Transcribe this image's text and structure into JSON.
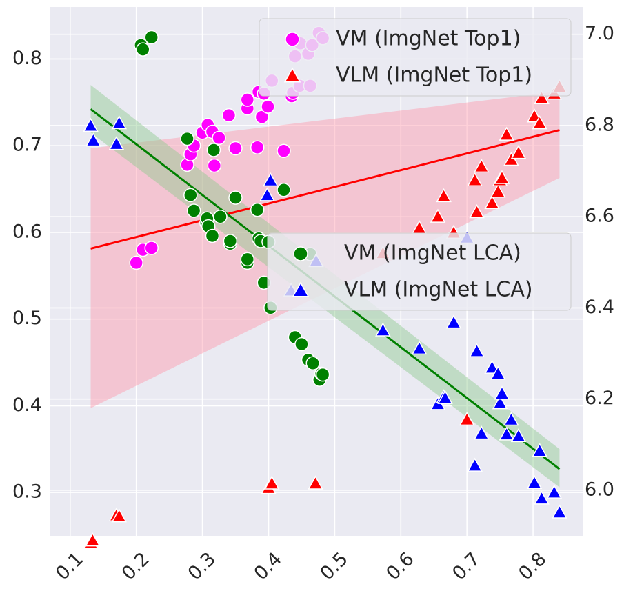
{
  "chart_data": {
    "type": "scatter",
    "title": "",
    "xlabel": "",
    "ylabel_left": "",
    "ylabel_right": "",
    "xlim": [
      0.07,
      0.875
    ],
    "ylim_left": [
      0.25,
      0.86
    ],
    "ylim_right": [
      5.9,
      7.06
    ],
    "x_ticks": [
      0.1,
      0.2,
      0.3,
      0.4,
      0.5,
      0.6,
      0.7,
      0.8
    ],
    "x_tick_labels": [
      "0.1",
      "0.2",
      "0.3",
      "0.4",
      "0.5",
      "0.6",
      "0.7",
      "0.8"
    ],
    "y_left_ticks": [
      0.3,
      0.4,
      0.5,
      0.6,
      0.7,
      0.8
    ],
    "y_left_tick_labels": [
      "0.3",
      "0.4",
      "0.5",
      "0.6",
      "0.7",
      "0.8"
    ],
    "y_right_ticks": [
      6.0,
      6.2,
      6.4,
      6.6,
      6.8,
      7.0
    ],
    "y_right_tick_labels": [
      "6.0",
      "6.2",
      "6.4",
      "6.6",
      "6.8",
      "7.0"
    ],
    "grid": true,
    "background_color": "#eaeaf2",
    "legends": [
      {
        "position": "top-right",
        "entries": [
          {
            "label": "VM (ImgNet Top1)",
            "marker": "circle",
            "color": "#ff00ff"
          },
          {
            "label": "VLM (ImgNet Top1)",
            "marker": "triangle",
            "color": "#ff0000"
          }
        ]
      },
      {
        "position": "center-right",
        "entries": [
          {
            "label": "VM (ImgNet LCA)",
            "marker": "circle",
            "color": "#008000"
          },
          {
            "label": "VLM (ImgNet LCA)",
            "marker": "triangle",
            "color": "#0000ff"
          }
        ]
      }
    ],
    "series": [
      {
        "name": "VM (ImgNet Top1)",
        "axis": "left",
        "marker": "circle",
        "color": "#ff00ff",
        "points": [
          [
            0.2,
            0.565
          ],
          [
            0.21,
            0.58
          ],
          [
            0.223,
            0.582
          ],
          [
            0.277,
            0.678
          ],
          [
            0.282,
            0.69
          ],
          [
            0.287,
            0.7
          ],
          [
            0.3,
            0.715
          ],
          [
            0.308,
            0.724
          ],
          [
            0.315,
            0.716
          ],
          [
            0.318,
            0.677
          ],
          [
            0.325,
            0.709
          ],
          [
            0.34,
            0.735
          ],
          [
            0.35,
            0.697
          ],
          [
            0.368,
            0.743
          ],
          [
            0.368,
            0.753
          ],
          [
            0.383,
            0.698
          ],
          [
            0.385,
            0.762
          ],
          [
            0.39,
            0.733
          ],
          [
            0.393,
            0.76
          ],
          [
            0.399,
            0.745
          ],
          [
            0.405,
            0.775
          ],
          [
            0.423,
            0.694
          ],
          [
            0.435,
            0.757
          ],
          [
            0.437,
            0.761
          ],
          [
            0.44,
            0.803
          ],
          [
            0.447,
            0.769
          ],
          [
            0.448,
            0.818
          ],
          [
            0.46,
            0.806
          ],
          [
            0.463,
            0.769
          ],
          [
            0.466,
            0.816
          ],
          [
            0.476,
            0.83
          ],
          [
            0.482,
            0.824
          ]
        ]
      },
      {
        "name": "VLM (ImgNet Top1)",
        "axis": "right",
        "marker": "triangle",
        "color": "#ff0000",
        "points": [
          [
            0.131,
            5.885
          ],
          [
            0.134,
            5.89
          ],
          [
            0.17,
            5.945
          ],
          [
            0.174,
            5.943
          ],
          [
            0.4,
            6.005
          ],
          [
            0.405,
            6.015
          ],
          [
            0.471,
            6.015
          ],
          [
            0.573,
            6.52
          ],
          [
            0.628,
            6.575
          ],
          [
            0.656,
            6.6
          ],
          [
            0.665,
            6.645
          ],
          [
            0.68,
            6.565
          ],
          [
            0.7,
            6.155
          ],
          [
            0.712,
            6.68
          ],
          [
            0.715,
            6.61
          ],
          [
            0.722,
            6.71
          ],
          [
            0.738,
            6.63
          ],
          [
            0.747,
            6.655
          ],
          [
            0.75,
            6.68
          ],
          [
            0.753,
            6.685
          ],
          [
            0.76,
            6.78
          ],
          [
            0.767,
            6.725
          ],
          [
            0.778,
            6.74
          ],
          [
            0.802,
            6.82
          ],
          [
            0.81,
            6.805
          ],
          [
            0.813,
            6.86
          ],
          [
            0.832,
            6.87
          ],
          [
            0.84,
            6.885
          ]
        ]
      },
      {
        "name": "VM (ImgNet LCA)",
        "axis": "left",
        "marker": "circle",
        "color": "#008000",
        "points": [
          [
            0.207,
            0.816
          ],
          [
            0.21,
            0.811
          ],
          [
            0.223,
            0.825
          ],
          [
            0.277,
            0.708
          ],
          [
            0.282,
            0.643
          ],
          [
            0.287,
            0.625
          ],
          [
            0.306,
            0.611
          ],
          [
            0.307,
            0.616
          ],
          [
            0.309,
            0.607
          ],
          [
            0.315,
            0.596
          ],
          [
            0.317,
            0.695
          ],
          [
            0.327,
            0.618
          ],
          [
            0.342,
            0.587
          ],
          [
            0.342,
            0.59
          ],
          [
            0.35,
            0.64
          ],
          [
            0.368,
            0.565
          ],
          [
            0.368,
            0.569
          ],
          [
            0.383,
            0.626
          ],
          [
            0.385,
            0.593
          ],
          [
            0.388,
            0.59
          ],
          [
            0.393,
            0.542
          ],
          [
            0.4,
            0.589
          ],
          [
            0.403,
            0.513
          ],
          [
            0.423,
            0.649
          ],
          [
            0.44,
            0.479
          ],
          [
            0.45,
            0.471
          ],
          [
            0.46,
            0.453
          ],
          [
            0.463,
            0.575
          ],
          [
            0.467,
            0.449
          ],
          [
            0.477,
            0.43
          ],
          [
            0.48,
            0.437
          ],
          [
            0.482,
            0.436
          ]
        ]
      },
      {
        "name": "VLM (ImgNet LCA)",
        "axis": "left",
        "marker": "triangle",
        "color": "#0000ff",
        "points": [
          [
            0.131,
            0.723
          ],
          [
            0.135,
            0.706
          ],
          [
            0.17,
            0.702
          ],
          [
            0.174,
            0.726
          ],
          [
            0.398,
            0.643
          ],
          [
            0.403,
            0.66
          ],
          [
            0.434,
            0.533
          ],
          [
            0.472,
            0.567
          ],
          [
            0.573,
            0.487
          ],
          [
            0.628,
            0.466
          ],
          [
            0.656,
            0.402
          ],
          [
            0.665,
            0.41
          ],
          [
            0.667,
            0.409
          ],
          [
            0.68,
            0.496
          ],
          [
            0.7,
            0.594
          ],
          [
            0.712,
            0.331
          ],
          [
            0.715,
            0.463
          ],
          [
            0.722,
            0.368
          ],
          [
            0.738,
            0.444
          ],
          [
            0.747,
            0.437
          ],
          [
            0.75,
            0.403
          ],
          [
            0.753,
            0.414
          ],
          [
            0.76,
            0.367
          ],
          [
            0.767,
            0.384
          ],
          [
            0.778,
            0.365
          ],
          [
            0.802,
            0.311
          ],
          [
            0.81,
            0.348
          ],
          [
            0.813,
            0.293
          ],
          [
            0.832,
            0.3
          ],
          [
            0.84,
            0.277
          ]
        ]
      }
    ],
    "regressions": [
      {
        "series": "VLM (ImgNet Top1)",
        "axis": "right",
        "color": "#ff0000",
        "band_color": "#ff9aaa",
        "x_range": [
          0.131,
          0.84
        ],
        "y_range": [
          6.53,
          6.79
        ],
        "band_low": [
          6.18,
          6.685
        ],
        "band_high": [
          6.75,
          6.875
        ]
      },
      {
        "series": "VM (ImgNet LCA)",
        "axis": "left",
        "color": "#008000",
        "band_color": "#8fc98f",
        "x_range": [
          0.131,
          0.84
        ],
        "y_range": [
          0.742,
          0.327
        ],
        "band_low": [
          0.715,
          0.306
        ],
        "band_high": [
          0.77,
          0.35
        ]
      }
    ]
  }
}
